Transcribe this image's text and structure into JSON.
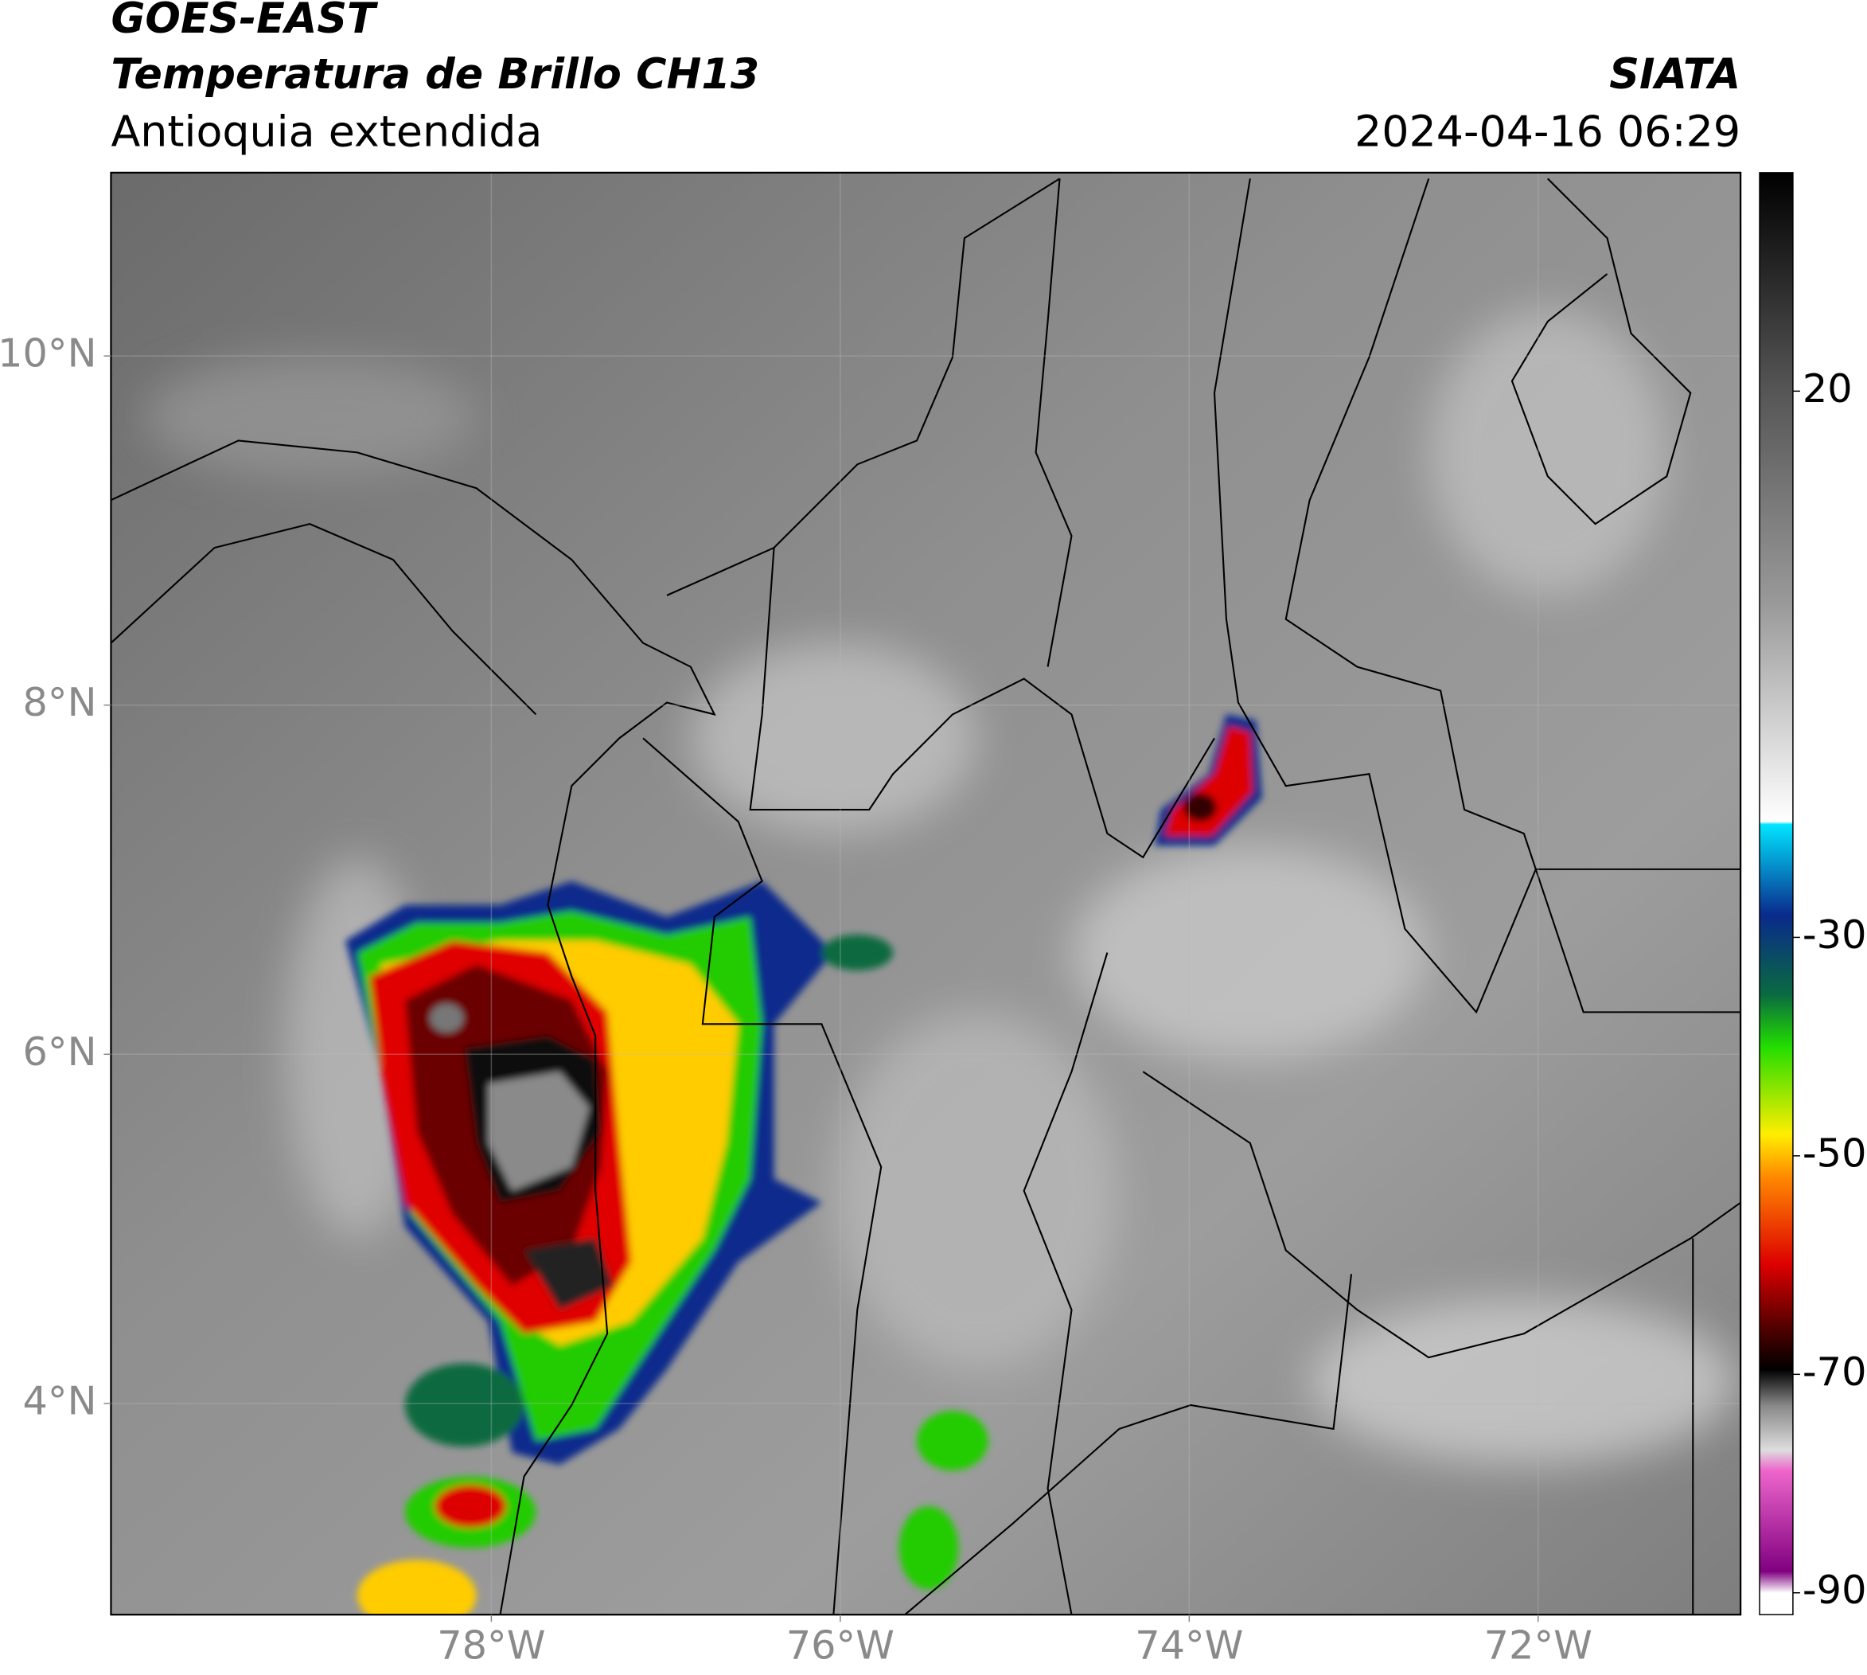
{
  "header": {
    "title": "GOES-EAST",
    "subtitle": "Temperatura de Brillo CH13",
    "region": "Antioquia extendida",
    "source": "SIATA",
    "datetime": "2024-04-16 06:29"
  },
  "map": {
    "lon_range": [
      -80.18,
      -70.84
    ],
    "lat_range": [
      2.79,
      11.05
    ],
    "lat_ticks": [
      {
        "value": 10,
        "label": "10°N"
      },
      {
        "value": 8,
        "label": "8°N"
      },
      {
        "value": 6,
        "label": "6°N"
      },
      {
        "value": 4,
        "label": "4°N"
      }
    ],
    "lon_ticks": [
      {
        "value": -78,
        "label": "78°W"
      },
      {
        "value": -76,
        "label": "76°W"
      },
      {
        "value": -74,
        "label": "74°W"
      },
      {
        "value": -72,
        "label": "72°W"
      }
    ],
    "grid": true
  },
  "colorbar": {
    "range": [
      -92,
      40
    ],
    "ticks": [
      20,
      -30,
      -50,
      -70,
      -90
    ]
  }
}
